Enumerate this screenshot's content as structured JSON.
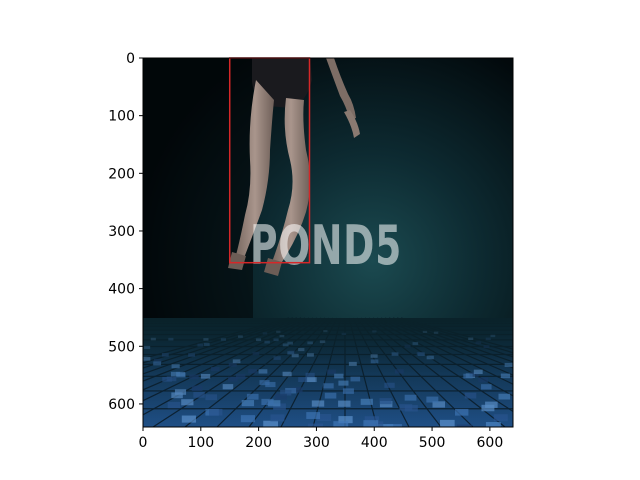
{
  "figure": {
    "type": "image-with-bounding-box",
    "x_axis": {
      "ticks": [
        0,
        100,
        200,
        300,
        400,
        500,
        600
      ],
      "limits": [
        0,
        640
      ]
    },
    "y_axis": {
      "ticks": [
        0,
        100,
        200,
        300,
        400,
        500,
        600
      ],
      "limits": [
        640,
        0
      ],
      "inverted": true
    },
    "image": {
      "subject": "legs of a swimmer underwater above a blue mosaic tiled pool floor",
      "watermark_text": "POND5"
    },
    "bounding_box": {
      "color": "#d62728",
      "x_range": [
        150,
        288
      ],
      "y_range": [
        0,
        355
      ]
    }
  }
}
